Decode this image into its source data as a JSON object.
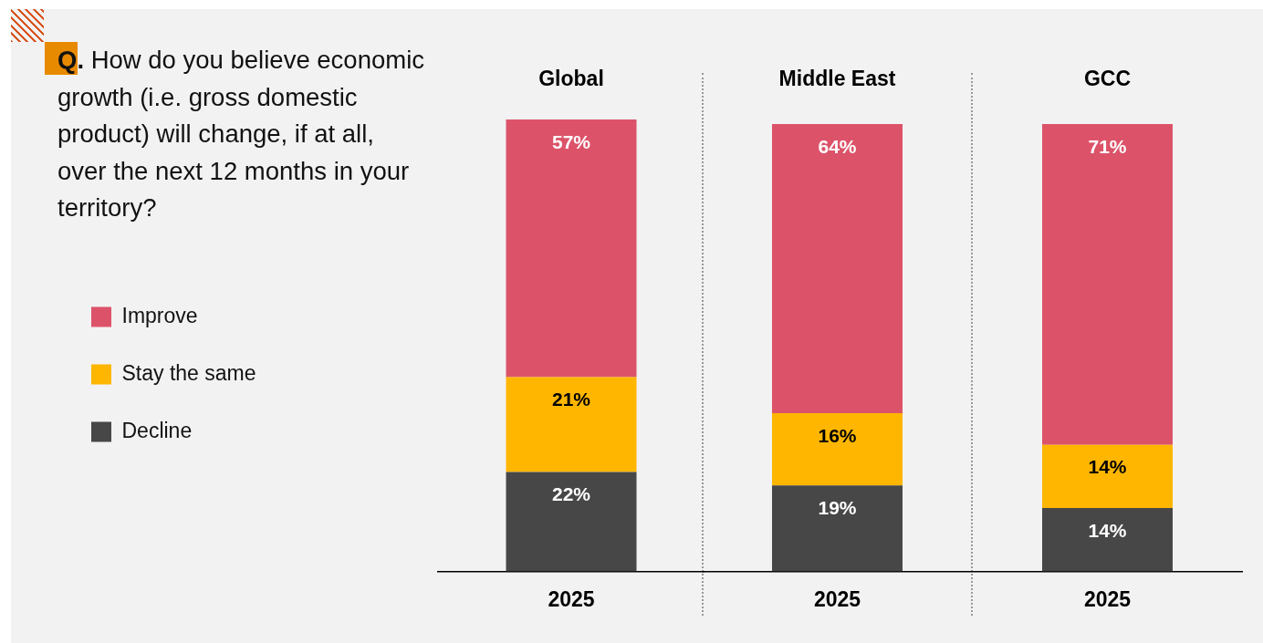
{
  "chart_data": [
    {
      "type": "bar",
      "title": "Global",
      "annotations": [
        "Q. How do you believe economic growth (i.e. gross domestic product) will change, if at all, over the next 12 months in your territory?"
      ],
      "categories": [
        "2025"
      ],
      "stacked": true,
      "tick_labels": "x",
      "grid": false,
      "legend": "left",
      "series": [
        {
          "name": "Decline",
          "color": "#474747",
          "values": [
            22
          ],
          "value_labels": [
            "22%"
          ]
        },
        {
          "name": "Stay the same",
          "color": "#ffb600",
          "values": [
            21
          ],
          "value_labels": [
            "21%"
          ]
        },
        {
          "name": "Improve",
          "color": "#dc5369",
          "values": [
            57
          ],
          "value_labels": [
            "57%"
          ]
        }
      ]
    },
    {
      "type": "bar",
      "title": "Middle East",
      "categories": [
        "2025"
      ],
      "stacked": true,
      "tick_labels": "x",
      "grid": false,
      "series": [
        {
          "color": "#474747",
          "values": [
            19
          ],
          "value_labels": [
            "19%"
          ]
        },
        {
          "color": "#ffb600",
          "values": [
            16
          ],
          "value_labels": [
            "16%"
          ]
        },
        {
          "color": "#dc5369",
          "values": [
            64
          ],
          "value_labels": [
            "64%"
          ]
        }
      ]
    },
    {
      "type": "bar",
      "title": "GCC",
      "categories": [
        "2025"
      ],
      "stacked": true,
      "tick_labels": "x",
      "grid": false,
      "series": [
        {
          "color": "#474747",
          "values": [
            14
          ],
          "value_labels": [
            "14%"
          ]
        },
        {
          "color": "#ffb600",
          "values": [
            14
          ],
          "value_labels": [
            "14%"
          ]
        },
        {
          "color": "#dc5369",
          "values": [
            71
          ],
          "value_labels": [
            "71%"
          ]
        }
      ]
    }
  ]
}
